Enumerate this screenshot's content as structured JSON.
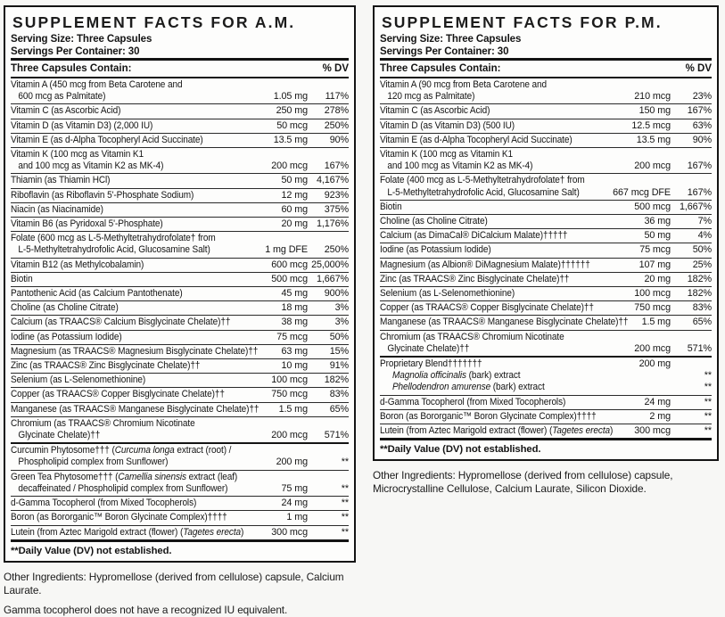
{
  "panels": [
    {
      "id": "am",
      "title": "SUPPLEMENT FACTS FOR A.M.",
      "serving_size": "Serving Size: Three Capsules",
      "servings_per_container": "Servings Per Container: 30",
      "contains_label": "Three Capsules Contain:",
      "dv_label": "% DV",
      "rows": [
        {
          "ln": [
            {
              "g": [
                "Vitamin A (450 mcg from Beta Carotene and"
              ]
            },
            {
              "g": [
                "600 mcg as Palmitate)"
              ],
              "a": "1.05 mg",
              "d": "117%",
              "in": 1
            }
          ]
        },
        {
          "ln": [
            {
              "g": [
                "Vitamin C (as Ascorbic Acid)"
              ],
              "a": "250 mg",
              "d": "278%"
            }
          ]
        },
        {
          "ln": [
            {
              "g": [
                "Vitamin D (as Vitamin D3) (2,000 IU)"
              ],
              "a": "50 mcg",
              "d": "250%"
            }
          ]
        },
        {
          "ln": [
            {
              "g": [
                "Vitamin E (as d-Alpha Tocopheryl Acid Succinate)"
              ],
              "a": "13.5 mg",
              "d": "90%"
            }
          ]
        },
        {
          "ln": [
            {
              "g": [
                "Vitamin K (100 mcg as Vitamin K1"
              ]
            },
            {
              "g": [
                "and 100 mcg as Vitamin K2 as MK-4)"
              ],
              "a": "200 mcg",
              "d": "167%",
              "in": 1
            }
          ]
        },
        {
          "ln": [
            {
              "g": [
                "Thiamin (as Thiamin HCl)"
              ],
              "a": "50 mg",
              "d": "4,167%"
            }
          ]
        },
        {
          "ln": [
            {
              "g": [
                "Riboflavin (as Riboflavin 5'-Phosphate Sodium)"
              ],
              "a": "12 mg",
              "d": "923%"
            }
          ]
        },
        {
          "ln": [
            {
              "g": [
                "Niacin (as Niacinamide)"
              ],
              "a": "60 mg",
              "d": "375%"
            }
          ]
        },
        {
          "ln": [
            {
              "g": [
                "Vitamin B6 (as Pyridoxal 5'-Phosphate)"
              ],
              "a": "20 mg",
              "d": "1,176%"
            }
          ]
        },
        {
          "ln": [
            {
              "g": [
                "Folate (600 mcg as L-5-Methyltetrahydrofolate† from"
              ]
            },
            {
              "g": [
                "L-5-Methyltetrahydrofolic Acid, Glucosamine Salt)"
              ],
              "a": "1 mg DFE",
              "d": "250%",
              "in": 1
            }
          ]
        },
        {
          "ln": [
            {
              "g": [
                "Vitamin B12 (as Methylcobalamin)"
              ],
              "a": "600 mcg",
              "d": "25,000%"
            }
          ]
        },
        {
          "ln": [
            {
              "g": [
                "Biotin"
              ],
              "a": "500 mcg",
              "d": "1,667%"
            }
          ]
        },
        {
          "ln": [
            {
              "g": [
                "Pantothenic Acid (as Calcium Pantothenate)"
              ],
              "a": "45 mg",
              "d": "900%"
            }
          ]
        },
        {
          "ln": [
            {
              "g": [
                "Choline (as Choline Citrate)"
              ],
              "a": "18 mg",
              "d": "3%"
            }
          ]
        },
        {
          "ln": [
            {
              "g": [
                "Calcium (as TRAACS® Calcium Bisglycinate Chelate)††"
              ],
              "a": "38 mg",
              "d": "3%"
            }
          ]
        },
        {
          "ln": [
            {
              "g": [
                "Iodine (as Potassium Iodide)"
              ],
              "a": "75 mcg",
              "d": "50%"
            }
          ]
        },
        {
          "ln": [
            {
              "g": [
                "Magnesium (as TRAACS® Magnesium Bisglycinate Chelate)††"
              ],
              "a": "63 mg",
              "d": "15%"
            }
          ]
        },
        {
          "ln": [
            {
              "g": [
                "Zinc (as TRAACS® Zinc Bisglycinate Chelate)††"
              ],
              "a": "10 mg",
              "d": "91%"
            }
          ]
        },
        {
          "ln": [
            {
              "g": [
                "Selenium (as L-Selenomethionine)"
              ],
              "a": "100 mcg",
              "d": "182%"
            }
          ]
        },
        {
          "ln": [
            {
              "g": [
                "Copper (as TRAACS® Copper Bisglycinate Chelate)††"
              ],
              "a": "750 mcg",
              "d": "83%"
            }
          ]
        },
        {
          "ln": [
            {
              "g": [
                "Manganese (as TRAACS® Manganese Bisglycinate Chelate)††"
              ],
              "a": "1.5 mg",
              "d": "65%"
            }
          ]
        },
        {
          "ln": [
            {
              "g": [
                "Chromium (as TRAACS® Chromium Nicotinate"
              ]
            },
            {
              "g": [
                "Glycinate Chelate)††"
              ],
              "a": "200 mcg",
              "d": "571%",
              "in": 1
            }
          ]
        },
        {
          "s": "thick",
          "ln": [
            {
              "g": [
                "Curcumin Phytosome††† (",
                [
                  "Curcuma longa"
                ],
                " extract (root) /"
              ]
            },
            {
              "g": [
                "Phospholipid complex from Sunflower)"
              ],
              "a": "200 mg",
              "d": "**",
              "in": 1
            }
          ]
        },
        {
          "ln": [
            {
              "g": [
                "Green Tea Phytosome††† (",
                [
                  "Camellia sinensis"
                ],
                " extract (leaf)"
              ]
            },
            {
              "g": [
                "decaffeinated / Phospholipid complex from Sunflower)"
              ],
              "a": "75 mg",
              "d": "**",
              "in": 1
            }
          ]
        },
        {
          "ln": [
            {
              "g": [
                "d-Gamma Tocopherol (from Mixed Tocopherols)"
              ],
              "a": "24 mg",
              "d": "**"
            }
          ]
        },
        {
          "ln": [
            {
              "g": [
                "Boron (as Bororganic™ Boron Glycinate Complex)††††"
              ],
              "a": "1 mg",
              "d": "**"
            }
          ]
        },
        {
          "ln": [
            {
              "g": [
                "Lutein (from Aztec Marigold extract (flower) (",
                [
                  "Tagetes erecta"
                ],
                ")"
              ],
              "a": "300 mcg",
              "d": "**"
            }
          ]
        }
      ],
      "footnote": "**Daily Value (DV) not established.",
      "other_ingredients": "Other Ingredients: Hypromellose (derived from cellulose) capsule, Calcium Laurate.",
      "extra_note": "Gamma tocopherol does not have a recognized IU equivalent."
    },
    {
      "id": "pm",
      "title": "SUPPLEMENT FACTS FOR P.M.",
      "serving_size": "Serving Size: Three Capsules",
      "servings_per_container": "Servings Per Container: 30",
      "contains_label": "Three Capsules Contain:",
      "dv_label": "% DV",
      "rows": [
        {
          "ln": [
            {
              "g": [
                "Vitamin A (90 mcg from Beta Carotene and"
              ]
            },
            {
              "g": [
                "120 mcg as Palmitate)"
              ],
              "a": "210 mcg",
              "d": "23%",
              "in": 1
            }
          ]
        },
        {
          "ln": [
            {
              "g": [
                "Vitamin C (as Ascorbic Acid)"
              ],
              "a": "150 mg",
              "d": "167%"
            }
          ]
        },
        {
          "ln": [
            {
              "g": [
                "Vitamin D (as Vitamin D3) (500 IU)"
              ],
              "a": "12.5 mcg",
              "d": "63%"
            }
          ]
        },
        {
          "ln": [
            {
              "g": [
                "Vitamin E (as d-Alpha Tocopheryl Acid Succinate)"
              ],
              "a": "13.5 mg",
              "d": "90%"
            }
          ]
        },
        {
          "ln": [
            {
              "g": [
                "Vitamin K (100 mcg as Vitamin K1"
              ]
            },
            {
              "g": [
                "and 100 mcg as Vitamin K2 as MK-4)"
              ],
              "a": "200 mcg",
              "d": "167%",
              "in": 1
            }
          ]
        },
        {
          "ln": [
            {
              "g": [
                "Folate (400 mcg as L-5-Methyltetrahydrofolate† from"
              ]
            },
            {
              "g": [
                "L-5-Methyltetrahydrofolic Acid, Glucosamine Salt)"
              ],
              "a": "667 mcg DFE",
              "d": "167%",
              "in": 1
            }
          ]
        },
        {
          "ln": [
            {
              "g": [
                "Biotin"
              ],
              "a": "500 mcg",
              "d": "1,667%"
            }
          ]
        },
        {
          "ln": [
            {
              "g": [
                "Choline (as Choline Citrate)"
              ],
              "a": "36 mg",
              "d": "7%"
            }
          ]
        },
        {
          "ln": [
            {
              "g": [
                "Calcium (as DimaCal® DiCalcium Malate)†††††"
              ],
              "a": "50 mg",
              "d": "4%"
            }
          ]
        },
        {
          "ln": [
            {
              "g": [
                "Iodine (as Potassium Iodide)"
              ],
              "a": "75 mcg",
              "d": "50%"
            }
          ]
        },
        {
          "ln": [
            {
              "g": [
                "Magnesium (as Albion® DiMagnesium Malate)††††††"
              ],
              "a": "107 mg",
              "d": "25%"
            }
          ]
        },
        {
          "ln": [
            {
              "g": [
                "Zinc (as TRAACS® Zinc Bisglycinate Chelate)††"
              ],
              "a": "20 mg",
              "d": "182%"
            }
          ]
        },
        {
          "ln": [
            {
              "g": [
                "Selenium (as L-Selenomethionine)"
              ],
              "a": "100 mcg",
              "d": "182%"
            }
          ]
        },
        {
          "ln": [
            {
              "g": [
                "Copper (as TRAACS® Copper Bisglycinate Chelate)††"
              ],
              "a": "750 mcg",
              "d": "83%"
            }
          ]
        },
        {
          "ln": [
            {
              "g": [
                "Manganese (as TRAACS® Manganese Bisglycinate Chelate)††"
              ],
              "a": "1.5 mg",
              "d": "65%"
            }
          ]
        },
        {
          "ln": [
            {
              "g": [
                "Chromium (as TRAACS® Chromium Nicotinate"
              ]
            },
            {
              "g": [
                "Glycinate Chelate)††"
              ],
              "a": "200 mcg",
              "d": "571%",
              "in": 1
            }
          ]
        },
        {
          "s": "thick",
          "ln": [
            {
              "g": [
                "Proprietary Blend†††††††"
              ],
              "a": "200 mg"
            },
            {
              "g": [
                [
                  "Magnolia officinalis"
                ],
                " (bark) extract"
              ],
              "d": "**",
              "in": 2
            },
            {
              "g": [
                [
                  "Phellodendron amurense"
                ],
                " (bark) extract"
              ],
              "d": "**",
              "in": 2
            }
          ]
        },
        {
          "ln": [
            {
              "g": [
                "d-Gamma Tocopherol (from Mixed Tocopherols)"
              ],
              "a": "24 mg",
              "d": "**"
            }
          ]
        },
        {
          "ln": [
            {
              "g": [
                "Boron (as Bororganic™ Boron Glycinate Complex)††††"
              ],
              "a": "2 mg",
              "d": "**"
            }
          ]
        },
        {
          "ln": [
            {
              "g": [
                "Lutein (from Aztec Marigold extract (flower) (",
                [
                  "Tagetes erecta"
                ],
                ")"
              ],
              "a": "300 mcg",
              "d": "**"
            }
          ]
        }
      ],
      "footnote": "**Daily Value (DV) not established.",
      "other_ingredients": "Other Ingredients: Hypromellose (derived from cellulose) capsule, Microcrystalline Cellulose, Calcium Laurate, Silicon Dioxide.",
      "extra_note": ""
    }
  ]
}
